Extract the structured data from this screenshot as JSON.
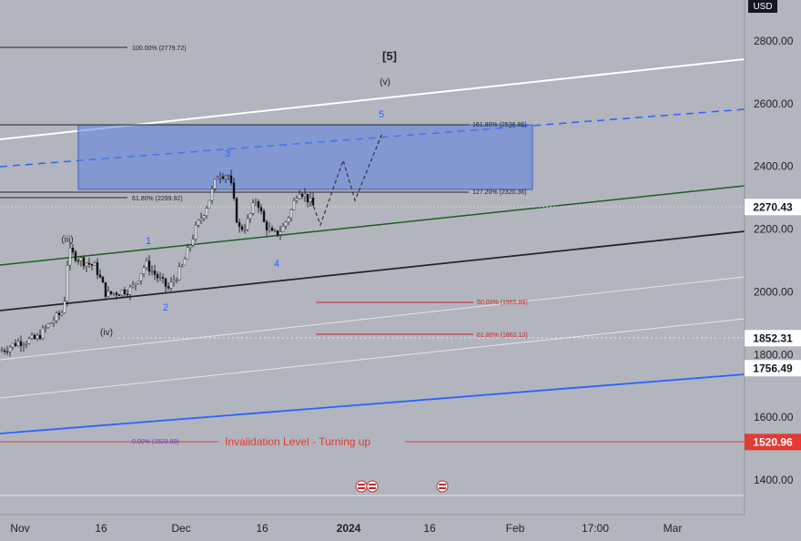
{
  "currency": "USD",
  "chart_data": {
    "type": "candlestick",
    "price_axis": {
      "ticks": [
        2800,
        2600,
        2400,
        2200,
        2000,
        1800,
        1600,
        1400
      ],
      "tick_labels": [
        "2800.00",
        "2600.00",
        "2400.00",
        "2200.00",
        "2000.00",
        "1800.00",
        "1600.00",
        "1400.00"
      ]
    },
    "time_axis": {
      "labels": [
        "Nov",
        "16",
        "Dec",
        "16",
        "2024",
        "16",
        "Feb",
        "17:00",
        "Mar"
      ]
    },
    "price_badges": [
      {
        "label": "2270.43",
        "value": 2270.43,
        "style": "white"
      },
      {
        "label": "1852.31",
        "value": 1852.31,
        "style": "white"
      },
      {
        "label": "1756.49",
        "value": 1756.49,
        "style": "white"
      },
      {
        "label": "1520.96",
        "value": 1520.96,
        "style": "red"
      }
    ],
    "fib_levels": [
      {
        "label": "100.00% (2779.72)",
        "value": 2779.72
      },
      {
        "label": "161.80% (2536.86)",
        "value": 2536.86
      },
      {
        "label": "61.80% (2299.92)",
        "value": 2299.92
      },
      {
        "label": "127.20% (2320.36)",
        "value": 2320.36
      },
      {
        "label": "50.00% (1965.88)",
        "value": 1965.88
      },
      {
        "label": "61.80% (1862.13)",
        "value": 1862.13
      },
      {
        "label": "0.00% (1523.69)",
        "value": 1523.69
      }
    ],
    "wave_labels": [
      "[5]",
      "(v)",
      "5",
      "3",
      "1",
      "2",
      "4",
      "(iii)",
      "(iv)"
    ],
    "invalidation_text": "Invalidation Level - Turning up",
    "target_zone": {
      "low": 2320.36,
      "high": 2536.86
    },
    "colors": {
      "background": "#b2b5be",
      "target_zone": "#5b7fe0",
      "invalidation": "#e53935",
      "wave_blue": "#2962ff",
      "green_channel": "#1b5e20",
      "blue_channel": "#2962ff",
      "candle_up": "#ffffff",
      "candle_down": "#111111"
    }
  }
}
